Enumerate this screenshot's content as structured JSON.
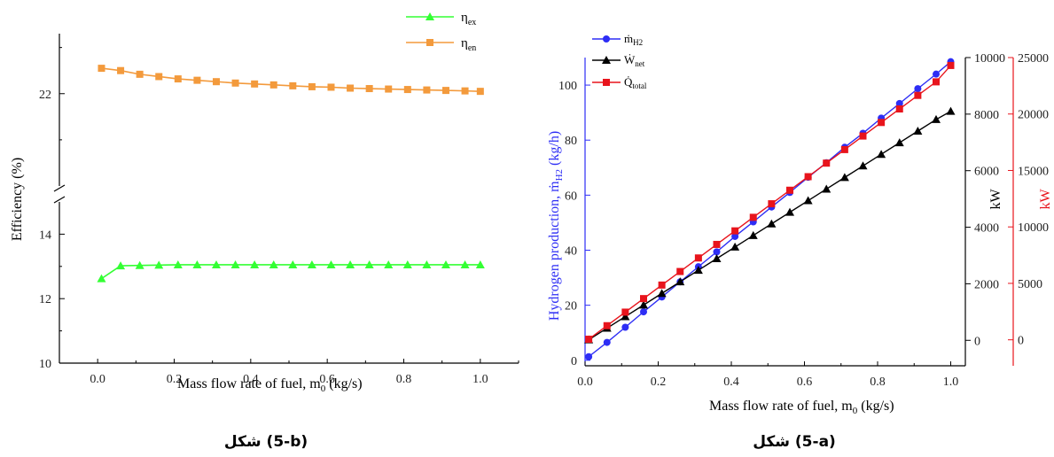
{
  "charts": [
    {
      "id": "b",
      "caption": "شكل (5-b)",
      "type": "line",
      "xlabel_main": "Mass flow rate of fuel, m",
      "xlabel_sub": "0",
      "xlabel_unit": " (kg/s)",
      "ylabel": "Efficiency (%)",
      "xlim": [
        -0.1,
        1.1
      ],
      "x_ticks": [
        "0.0",
        "0.2",
        "0.4",
        "0.6",
        "0.8",
        "1.0"
      ],
      "y_ticks_lower": [
        "10",
        "12",
        "14"
      ],
      "y_ticks_upper": [
        "22"
      ],
      "ylim_lower": [
        10,
        15
      ],
      "ylim_upper": [
        20,
        23.3
      ],
      "axis_break": true,
      "legend_placement": "top-right",
      "x": [
        0.01,
        0.06,
        0.11,
        0.16,
        0.21,
        0.26,
        0.31,
        0.36,
        0.41,
        0.46,
        0.51,
        0.56,
        0.61,
        0.66,
        0.71,
        0.76,
        0.81,
        0.86,
        0.91,
        0.96,
        1.0
      ],
      "series": [
        {
          "name": "η",
          "name_sub": "ex",
          "color": "#33ff33",
          "marker": "triangle",
          "values": [
            12.62,
            13.02,
            13.03,
            13.04,
            13.05,
            13.05,
            13.05,
            13.05,
            13.05,
            13.05,
            13.05,
            13.05,
            13.05,
            13.05,
            13.05,
            13.05,
            13.05,
            13.05,
            13.05,
            13.05,
            13.05
          ]
        },
        {
          "name": "η",
          "name_sub": "en",
          "color": "#f39a3c",
          "marker": "square",
          "values": [
            22.55,
            22.5,
            22.42,
            22.37,
            22.32,
            22.29,
            22.26,
            22.23,
            22.21,
            22.19,
            22.17,
            22.15,
            22.14,
            22.12,
            22.11,
            22.1,
            22.09,
            22.08,
            22.07,
            22.06,
            22.05
          ]
        }
      ]
    },
    {
      "id": "a",
      "caption": "شكل (5-a)",
      "type": "line",
      "xlabel_main": "Mass flow rate of fuel, m",
      "xlabel_sub": "0",
      "xlabel_unit": " (kg/s)",
      "ylabel_left": "Hydrogen production, ṁ",
      "ylabel_left_sub": "H2",
      "ylabel_left_unit": " (kg/h)",
      "ylabel_right1": "kW",
      "ylabel_right2": "kW",
      "xlim": [
        0,
        1.04
      ],
      "x_ticks": [
        "0.0",
        "0.2",
        "0.4",
        "0.6",
        "0.8",
        "1.0"
      ],
      "left_ticks": [
        "0",
        "20",
        "40",
        "60",
        "80",
        "100"
      ],
      "left_ylim": [
        -2,
        110
      ],
      "right1_ticks": [
        "0",
        "2000",
        "4000",
        "6000",
        "8000",
        "10000"
      ],
      "right1_ylim": [
        -900,
        10000
      ],
      "right2_ticks": [
        "0",
        "5000",
        "10000",
        "15000",
        "20000",
        "25000"
      ],
      "right2_ylim": [
        -2300,
        25000
      ],
      "axis_colors": {
        "left": "#2d2df5",
        "right1": "#000000",
        "right2": "#e8141c"
      },
      "legend_placement": "top-left",
      "x": [
        0.01,
        0.06,
        0.11,
        0.16,
        0.21,
        0.26,
        0.31,
        0.36,
        0.41,
        0.46,
        0.51,
        0.56,
        0.61,
        0.66,
        0.71,
        0.76,
        0.81,
        0.86,
        0.91,
        0.96,
        1.0
      ],
      "series": [
        {
          "name": "ṁ",
          "name_sub": "H2",
          "axis": "left",
          "color": "#2d2df5",
          "marker": "circle",
          "values": [
            1.3,
            6.5,
            12,
            17.6,
            23,
            28.5,
            34,
            39.4,
            45,
            50.3,
            55.7,
            61,
            66.5,
            71.8,
            77.4,
            82.5,
            88,
            93.3,
            98.7,
            104,
            108.5
          ]
        },
        {
          "name": "Ẇ",
          "name_sub": "net",
          "axis": "right1",
          "color": "#000000",
          "marker": "triangle",
          "values": [
            20,
            430,
            840,
            1250,
            1660,
            2070,
            2480,
            2890,
            3300,
            3710,
            4120,
            4530,
            4940,
            5350,
            5760,
            6170,
            6580,
            6990,
            7400,
            7810,
            8100
          ]
        },
        {
          "name": "Q̇",
          "name_sub": "total",
          "axis": "right2",
          "color": "#e8141c",
          "marker": "square",
          "values": [
            50,
            1250,
            2450,
            3650,
            4850,
            6050,
            7250,
            8450,
            9650,
            10850,
            12050,
            13250,
            14450,
            15650,
            16850,
            18050,
            19250,
            20450,
            21650,
            22850,
            24300
          ]
        }
      ]
    }
  ]
}
